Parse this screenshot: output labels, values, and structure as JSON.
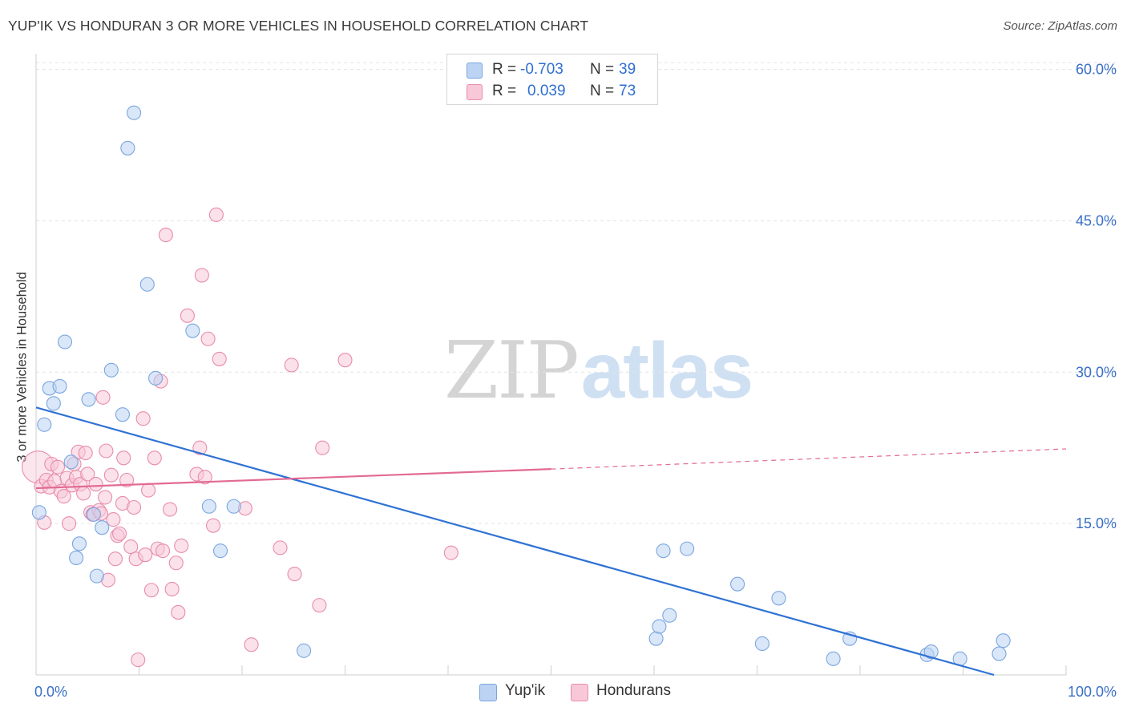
{
  "title": "YUP'IK VS HONDURAN 3 OR MORE VEHICLES IN HOUSEHOLD CORRELATION CHART",
  "source": "Source: ZipAtlas.com",
  "watermark": {
    "zip": "ZIP",
    "atlas": "atlas"
  },
  "legend": {
    "rows": [
      {
        "r_label": "R =",
        "r_value": "-0.703",
        "n_label": "N =",
        "n_value": "39"
      },
      {
        "r_label": "R =",
        "r_value": "0.039",
        "n_label": "N =",
        "n_value": "73"
      }
    ]
  },
  "bottom_legend": [
    "Yup'ik",
    "Hondurans"
  ],
  "colors": {
    "blue_fill": "#bcd3f3",
    "blue_stroke": "#7aa6e0",
    "blue_line": "#2f72d4",
    "pink_fill": "#f8c8d8",
    "pink_stroke": "#e88cab",
    "pink_line": "#e26a93",
    "tick_text": "#3a6fc7",
    "grid": "#e3e3e3"
  },
  "chart_data": {
    "type": "scatter",
    "title": "YUP'IK VS HONDURAN 3 OR MORE VEHICLES IN HOUSEHOLD CORRELATION CHART",
    "xlabel": "",
    "ylabel": "3 or more Vehicles in Household",
    "xlim": [
      0,
      100
    ],
    "ylim": [
      0,
      61
    ],
    "x_tick_labels": [
      "0.0%",
      "100.0%"
    ],
    "y_ticks": [
      15,
      30,
      45,
      60
    ],
    "y_tick_labels": [
      "15.0%",
      "30.0%",
      "45.0%",
      "60.0%"
    ],
    "grid": true,
    "legend_position": "top-center",
    "series": [
      {
        "name": "Yup'ik",
        "r": -0.703,
        "n": 39,
        "points": [
          [
            0.3,
            16.1
          ],
          [
            0.8,
            24.8
          ],
          [
            1.3,
            28.4
          ],
          [
            1.7,
            26.9
          ],
          [
            2.3,
            28.6
          ],
          [
            2.8,
            33.0
          ],
          [
            3.4,
            21.1
          ],
          [
            3.9,
            11.6
          ],
          [
            4.2,
            13.0
          ],
          [
            5.1,
            27.3
          ],
          [
            5.6,
            15.9
          ],
          [
            5.9,
            9.8
          ],
          [
            6.4,
            14.6
          ],
          [
            7.3,
            30.2
          ],
          [
            8.4,
            25.8
          ],
          [
            8.9,
            52.2
          ],
          [
            9.5,
            55.7
          ],
          [
            10.8,
            38.7
          ],
          [
            11.6,
            29.4
          ],
          [
            15.2,
            34.1
          ],
          [
            16.8,
            16.7
          ],
          [
            17.9,
            12.3
          ],
          [
            19.2,
            16.7
          ],
          [
            26.0,
            2.4
          ],
          [
            60.2,
            3.6
          ],
          [
            60.5,
            4.8
          ],
          [
            60.9,
            12.3
          ],
          [
            61.5,
            5.9
          ],
          [
            63.2,
            12.5
          ],
          [
            68.1,
            9.0
          ],
          [
            70.5,
            3.1
          ],
          [
            72.1,
            7.6
          ],
          [
            77.4,
            1.6
          ],
          [
            79.0,
            3.6
          ],
          [
            86.5,
            2.0
          ],
          [
            86.9,
            2.3
          ],
          [
            89.7,
            1.6
          ],
          [
            93.5,
            2.1
          ],
          [
            93.9,
            3.4
          ]
        ],
        "trend": {
          "x1": 0,
          "y1": 26.5,
          "x2": 93.0,
          "y2": 0.0
        }
      },
      {
        "name": "Hondurans",
        "r": 0.039,
        "n": 73,
        "points": [
          [
            0.2,
            20.6
          ],
          [
            0.5,
            18.7
          ],
          [
            0.8,
            15.1
          ],
          [
            1.0,
            19.3
          ],
          [
            1.3,
            18.6
          ],
          [
            1.5,
            20.9
          ],
          [
            1.8,
            19.2
          ],
          [
            2.1,
            20.6
          ],
          [
            2.4,
            18.2
          ],
          [
            2.7,
            17.7
          ],
          [
            3.0,
            19.5
          ],
          [
            3.2,
            15.0
          ],
          [
            3.5,
            18.8
          ],
          [
            3.7,
            20.9
          ],
          [
            3.9,
            19.6
          ],
          [
            4.1,
            22.1
          ],
          [
            4.3,
            18.9
          ],
          [
            4.6,
            18.0
          ],
          [
            4.8,
            22.0
          ],
          [
            5.0,
            19.9
          ],
          [
            5.3,
            16.1
          ],
          [
            5.5,
            15.9
          ],
          [
            5.8,
            18.9
          ],
          [
            6.1,
            16.3
          ],
          [
            6.3,
            16.0
          ],
          [
            6.5,
            27.5
          ],
          [
            6.7,
            17.6
          ],
          [
            6.8,
            22.2
          ],
          [
            7.0,
            9.4
          ],
          [
            7.3,
            19.8
          ],
          [
            7.5,
            15.4
          ],
          [
            7.7,
            11.5
          ],
          [
            7.9,
            13.8
          ],
          [
            8.1,
            14.0
          ],
          [
            8.4,
            17.0
          ],
          [
            8.5,
            21.5
          ],
          [
            8.8,
            19.3
          ],
          [
            9.2,
            12.7
          ],
          [
            9.5,
            16.6
          ],
          [
            9.7,
            11.5
          ],
          [
            9.9,
            1.5
          ],
          [
            10.4,
            25.4
          ],
          [
            10.6,
            11.9
          ],
          [
            10.9,
            18.3
          ],
          [
            11.2,
            8.4
          ],
          [
            11.5,
            21.5
          ],
          [
            11.8,
            12.5
          ],
          [
            12.1,
            29.1
          ],
          [
            12.3,
            12.3
          ],
          [
            12.6,
            43.6
          ],
          [
            13.0,
            16.4
          ],
          [
            13.2,
            8.5
          ],
          [
            13.6,
            11.1
          ],
          [
            13.8,
            6.2
          ],
          [
            14.1,
            12.8
          ],
          [
            14.7,
            35.6
          ],
          [
            15.6,
            19.9
          ],
          [
            15.9,
            22.5
          ],
          [
            16.1,
            39.6
          ],
          [
            16.4,
            19.6
          ],
          [
            16.7,
            33.3
          ],
          [
            17.2,
            14.8
          ],
          [
            17.5,
            45.6
          ],
          [
            17.8,
            31.3
          ],
          [
            20.3,
            16.5
          ],
          [
            20.9,
            3.0
          ],
          [
            23.7,
            12.6
          ],
          [
            24.8,
            30.7
          ],
          [
            25.1,
            10.0
          ],
          [
            27.5,
            6.9
          ],
          [
            27.8,
            22.5
          ],
          [
            30.0,
            31.2
          ],
          [
            40.3,
            12.1
          ]
        ],
        "trend": {
          "x1": 0,
          "y1": 18.5,
          "x2": 50.0,
          "y2": 20.4
        },
        "trend_dashed": {
          "x1": 50.0,
          "y1": 20.4,
          "x2": 100.0,
          "y2": 22.4
        }
      }
    ]
  }
}
